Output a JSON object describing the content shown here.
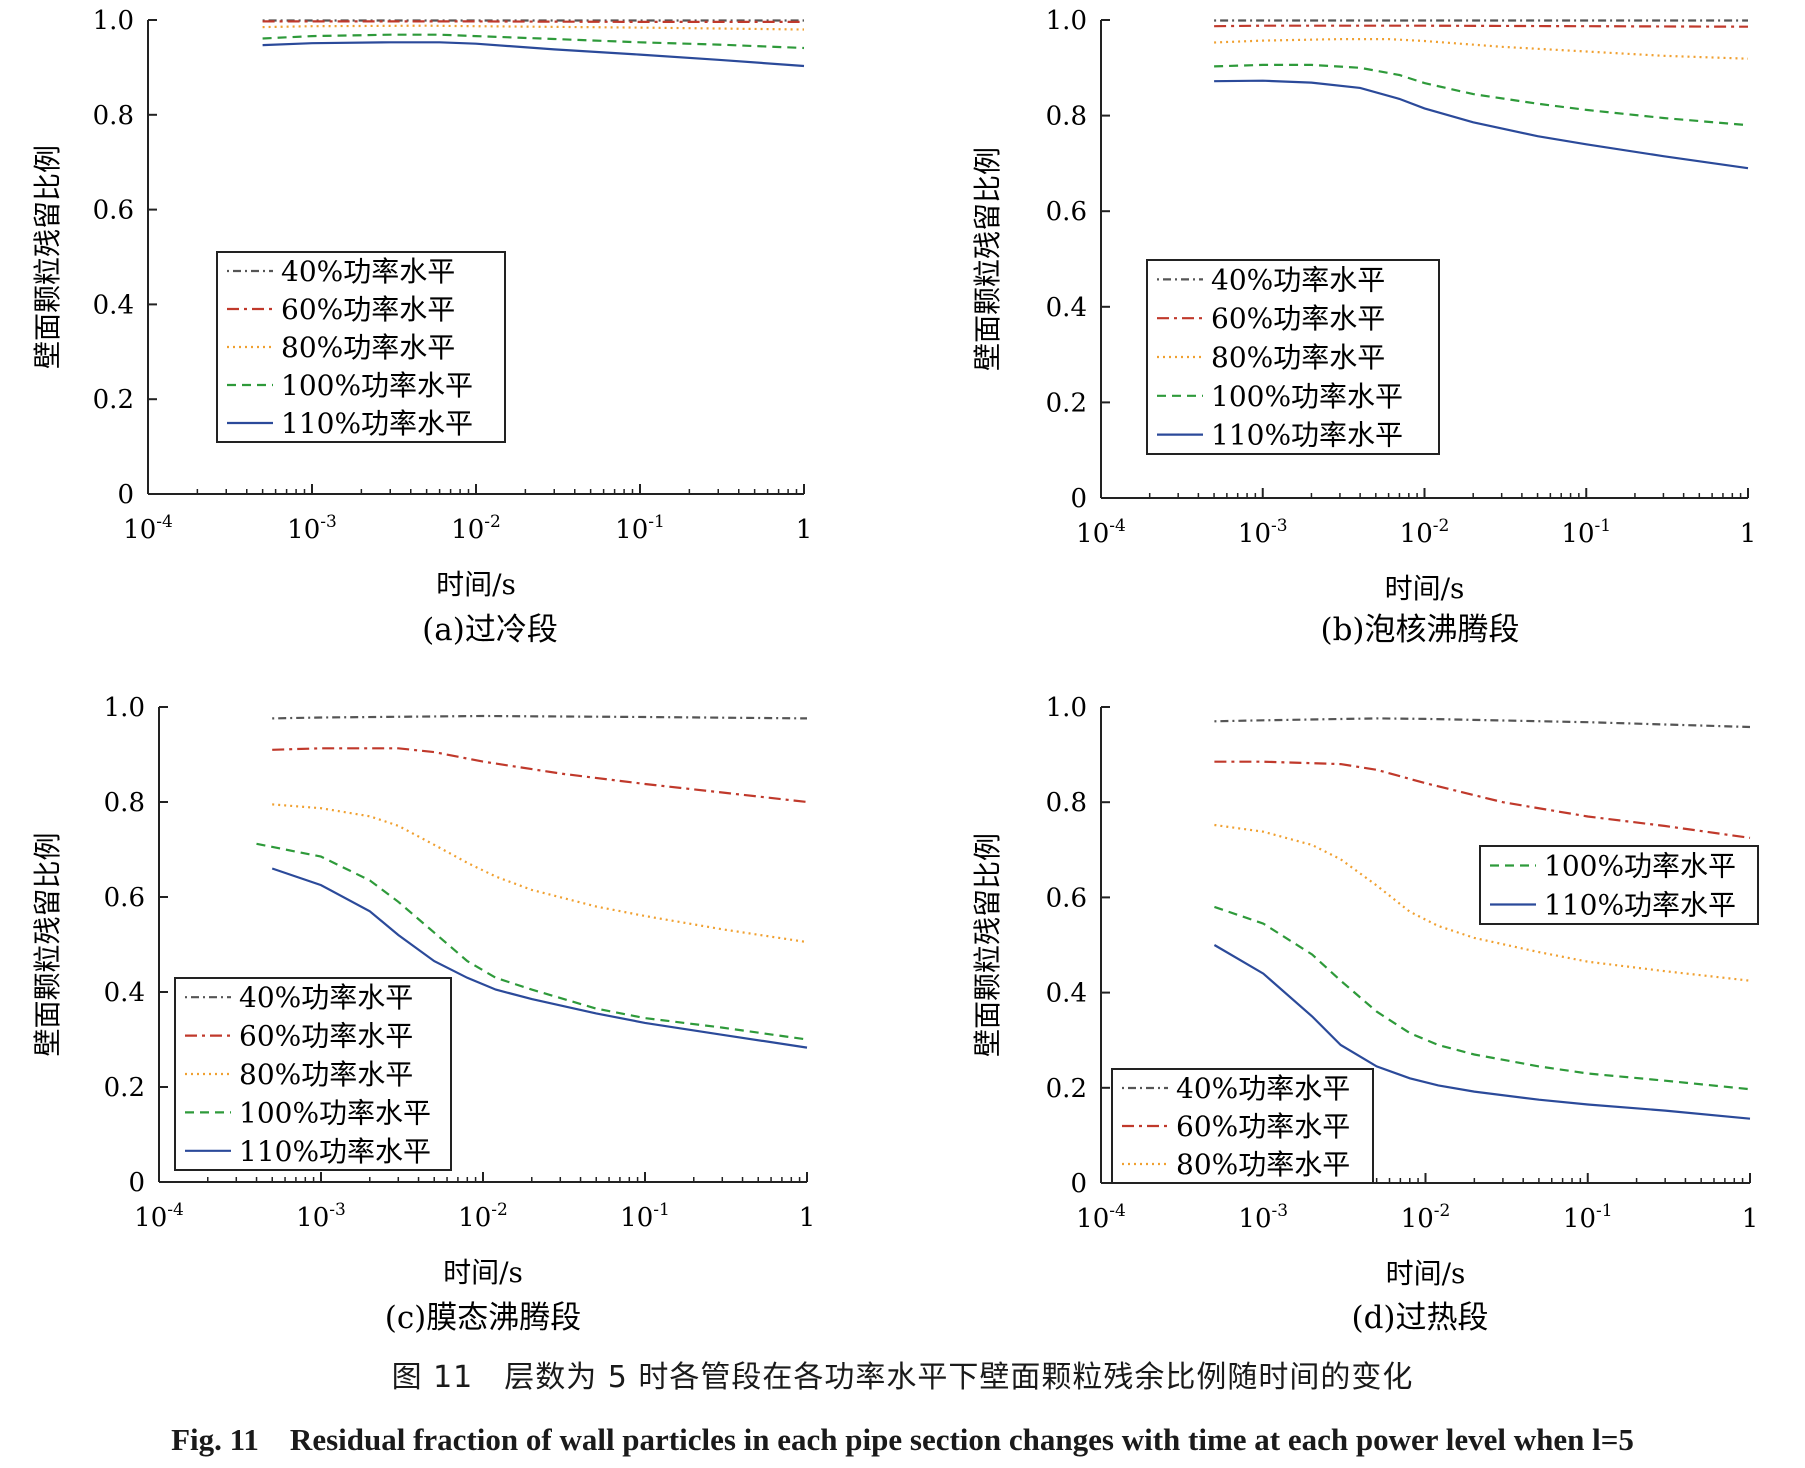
{
  "figure": {
    "caption_cn": "图 11　层数为 5 时各管段在各功率水平下壁面颗粒残余比例随时间的变化",
    "caption_en": "Fig. 11　Residual fraction of wall particles in each pipe section changes with time at each power level when l=5"
  },
  "styles": {
    "40%功率水平": {
      "color": "#555555",
      "dash": "2,4,8,4"
    },
    "60%功率水平": {
      "color": "#c0392b",
      "dash": "12,5,3,5"
    },
    "80%功率水平": {
      "color": "#f0a030",
      "dash": "2,4"
    },
    "100%功率水平": {
      "color": "#2e9a3a",
      "dash": "9,6"
    },
    "110%功率水平": {
      "color": "#2b4a9a",
      "dash": ""
    }
  },
  "chart_data": [
    {
      "type": "line",
      "caption": "(a)过冷段",
      "xlabel": "时间/s",
      "ylabel": "壁面颗粒残留比例",
      "xscale": "log",
      "xlim": [
        0.0001,
        1
      ],
      "ylim": [
        0,
        1.0
      ],
      "xticks": [
        "10-4",
        "10-3",
        "10-2",
        "10-1",
        "1"
      ],
      "yticks": [
        "0",
        "0.2",
        "0.4",
        "0.6",
        "0.8",
        "1.0"
      ],
      "legend_placement": "center-left",
      "legend_groups": [
        [
          "40%功率水平",
          "60%功率水平",
          "80%功率水平",
          "100%功率水平",
          "110%功率水平"
        ]
      ],
      "series": [
        {
          "name": "40%功率水平",
          "x": [
            0.0005,
            0.001,
            0.01,
            0.1,
            1
          ],
          "y": [
            0.999,
            0.999,
            0.999,
            0.999,
            0.999
          ]
        },
        {
          "name": "60%功率水平",
          "x": [
            0.0005,
            0.001,
            0.01,
            0.1,
            1
          ],
          "y": [
            0.997,
            0.997,
            0.997,
            0.996,
            0.996
          ]
        },
        {
          "name": "80%功率水平",
          "x": [
            0.0005,
            0.001,
            0.005,
            0.01,
            0.1,
            1
          ],
          "y": [
            0.985,
            0.987,
            0.988,
            0.987,
            0.984,
            0.98
          ]
        },
        {
          "name": "100%功率水平",
          "x": [
            0.0005,
            0.001,
            0.003,
            0.006,
            0.01,
            0.03,
            0.1,
            0.3,
            1
          ],
          "y": [
            0.961,
            0.966,
            0.969,
            0.969,
            0.966,
            0.96,
            0.953,
            0.948,
            0.941
          ]
        },
        {
          "name": "110%功率水平",
          "x": [
            0.0005,
            0.001,
            0.003,
            0.006,
            0.01,
            0.03,
            0.1,
            0.3,
            1
          ],
          "y": [
            0.947,
            0.951,
            0.953,
            0.953,
            0.95,
            0.938,
            0.927,
            0.916,
            0.903
          ]
        }
      ]
    },
    {
      "type": "line",
      "caption": "(b)泡核沸腾段",
      "xlabel": "时间/s",
      "ylabel": "壁面颗粒残留比例",
      "xscale": "log",
      "xlim": [
        0.0001,
        1
      ],
      "ylim": [
        0,
        1.0
      ],
      "xticks": [
        "10-4",
        "10-3",
        "10-2",
        "10-1",
        "1"
      ],
      "yticks": [
        "0",
        "0.2",
        "0.4",
        "0.6",
        "0.8",
        "1.0"
      ],
      "legend_placement": "center-left",
      "legend_groups": [
        [
          "40%功率水平",
          "60%功率水平",
          "80%功率水平",
          "100%功率水平",
          "110%功率水平"
        ]
      ],
      "series": [
        {
          "name": "40%功率水平",
          "x": [
            0.0005,
            0.001,
            0.01,
            0.1,
            1
          ],
          "y": [
            0.999,
            0.999,
            0.999,
            0.999,
            0.999
          ]
        },
        {
          "name": "60%功率水平",
          "x": [
            0.0005,
            0.001,
            0.01,
            0.1,
            1
          ],
          "y": [
            0.987,
            0.988,
            0.988,
            0.987,
            0.986
          ]
        },
        {
          "name": "80%功率水平",
          "x": [
            0.0005,
            0.001,
            0.003,
            0.006,
            0.01,
            0.03,
            0.1,
            0.3,
            1
          ],
          "y": [
            0.953,
            0.957,
            0.96,
            0.96,
            0.956,
            0.944,
            0.934,
            0.925,
            0.919
          ]
        },
        {
          "name": "100%功率水平",
          "x": [
            0.0005,
            0.001,
            0.002,
            0.004,
            0.007,
            0.01,
            0.02,
            0.05,
            0.1,
            0.3,
            1
          ],
          "y": [
            0.903,
            0.906,
            0.906,
            0.9,
            0.885,
            0.868,
            0.845,
            0.825,
            0.812,
            0.795,
            0.78
          ]
        },
        {
          "name": "110%功率水平",
          "x": [
            0.0005,
            0.001,
            0.002,
            0.004,
            0.007,
            0.01,
            0.02,
            0.05,
            0.1,
            0.3,
            1
          ],
          "y": [
            0.872,
            0.873,
            0.869,
            0.858,
            0.835,
            0.815,
            0.786,
            0.757,
            0.74,
            0.715,
            0.69
          ]
        }
      ]
    },
    {
      "type": "line",
      "caption": "(c)膜态沸腾段",
      "xlabel": "时间/s",
      "ylabel": "壁面颗粒残留比例",
      "xscale": "log",
      "xlim": [
        0.0001,
        1
      ],
      "ylim": [
        0,
        1.0
      ],
      "xticks": [
        "10-4",
        "10-3",
        "10-2",
        "10-1",
        "1"
      ],
      "yticks": [
        "0",
        "0.2",
        "0.4",
        "0.6",
        "0.8",
        "1.0"
      ],
      "legend_placement": "bottom-left",
      "legend_groups": [
        [
          "40%功率水平",
          "60%功率水平",
          "80%功率水平",
          "100%功率水平",
          "110%功率水平"
        ]
      ],
      "series": [
        {
          "name": "40%功率水平",
          "x": [
            0.0005,
            0.001,
            0.01,
            0.1,
            1
          ],
          "y": [
            0.976,
            0.978,
            0.981,
            0.979,
            0.976
          ]
        },
        {
          "name": "60%功率水平",
          "x": [
            0.0005,
            0.001,
            0.003,
            0.005,
            0.01,
            0.03,
            0.1,
            0.3,
            1
          ],
          "y": [
            0.91,
            0.913,
            0.913,
            0.905,
            0.885,
            0.86,
            0.838,
            0.82,
            0.8
          ]
        },
        {
          "name": "80%功率水平",
          "x": [
            0.0005,
            0.001,
            0.002,
            0.003,
            0.005,
            0.008,
            0.012,
            0.02,
            0.05,
            0.1,
            0.3,
            1
          ],
          "y": [
            0.795,
            0.787,
            0.77,
            0.75,
            0.71,
            0.672,
            0.643,
            0.615,
            0.58,
            0.56,
            0.532,
            0.505
          ]
        },
        {
          "name": "100%功率水平",
          "x": [
            0.0004,
            0.001,
            0.002,
            0.003,
            0.005,
            0.008,
            0.012,
            0.02,
            0.05,
            0.1,
            0.3,
            1
          ],
          "y": [
            0.712,
            0.685,
            0.635,
            0.59,
            0.525,
            0.465,
            0.43,
            0.405,
            0.365,
            0.345,
            0.325,
            0.3
          ]
        },
        {
          "name": "110%功率水平",
          "x": [
            0.0005,
            0.001,
            0.002,
            0.003,
            0.005,
            0.008,
            0.012,
            0.02,
            0.05,
            0.1,
            0.3,
            1
          ],
          "y": [
            0.66,
            0.625,
            0.57,
            0.52,
            0.465,
            0.43,
            0.405,
            0.385,
            0.355,
            0.335,
            0.31,
            0.283
          ]
        }
      ]
    },
    {
      "type": "line",
      "caption": "(d)过热段",
      "xlabel": "时间/s",
      "ylabel": "壁面颗粒残留比例",
      "xscale": "log",
      "xlim": [
        0.0001,
        1
      ],
      "ylim": [
        0,
        1.0
      ],
      "xticks": [
        "10-4",
        "10-3",
        "10-2",
        "10-1",
        "1"
      ],
      "yticks": [
        "0",
        "0.2",
        "0.4",
        "0.6",
        "0.8",
        "1.0"
      ],
      "legend_placement": "split: 100%/110% center-right, 40%/60%/80% bottom-left",
      "legend_groups": [
        [
          "100%功率水平",
          "110%功率水平"
        ],
        [
          "40%功率水平",
          "60%功率水平",
          "80%功率水平"
        ]
      ],
      "series": [
        {
          "name": "40%功率水平",
          "x": [
            0.0005,
            0.001,
            0.005,
            0.01,
            0.1,
            1
          ],
          "y": [
            0.97,
            0.972,
            0.976,
            0.975,
            0.968,
            0.958
          ]
        },
        {
          "name": "60%功率水平",
          "x": [
            0.0005,
            0.001,
            0.003,
            0.005,
            0.01,
            0.03,
            0.1,
            0.3,
            1
          ],
          "y": [
            0.885,
            0.885,
            0.88,
            0.868,
            0.84,
            0.8,
            0.77,
            0.75,
            0.725
          ]
        },
        {
          "name": "80%功率水平",
          "x": [
            0.0005,
            0.001,
            0.002,
            0.003,
            0.005,
            0.008,
            0.012,
            0.02,
            0.05,
            0.1,
            0.3,
            1
          ],
          "y": [
            0.752,
            0.738,
            0.71,
            0.68,
            0.625,
            0.57,
            0.54,
            0.515,
            0.485,
            0.465,
            0.445,
            0.425
          ]
        },
        {
          "name": "100%功率水平",
          "x": [
            0.0005,
            0.001,
            0.002,
            0.003,
            0.005,
            0.008,
            0.012,
            0.02,
            0.05,
            0.1,
            0.3,
            1
          ],
          "y": [
            0.58,
            0.545,
            0.48,
            0.425,
            0.36,
            0.315,
            0.29,
            0.27,
            0.245,
            0.23,
            0.215,
            0.197
          ]
        },
        {
          "name": "110%功率水平",
          "x": [
            0.0005,
            0.001,
            0.002,
            0.003,
            0.005,
            0.008,
            0.012,
            0.02,
            0.05,
            0.1,
            0.3,
            1
          ],
          "y": [
            0.5,
            0.44,
            0.35,
            0.29,
            0.245,
            0.22,
            0.205,
            0.192,
            0.175,
            0.165,
            0.152,
            0.135
          ]
        }
      ]
    }
  ]
}
